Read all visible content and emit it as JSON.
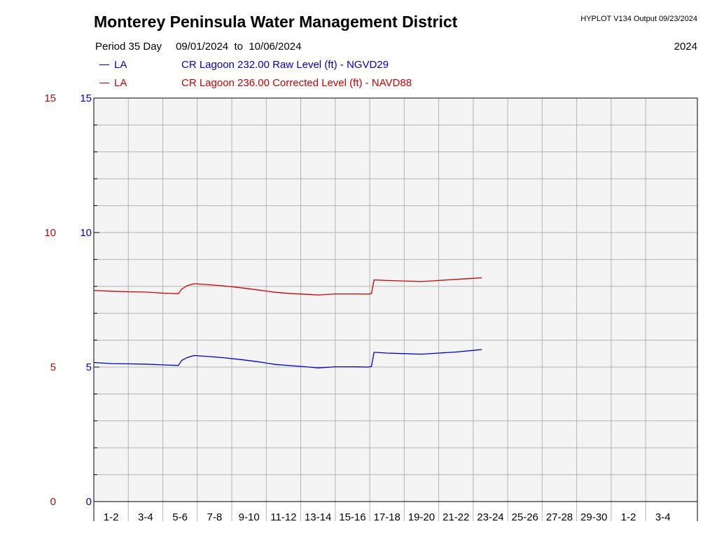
{
  "header": {
    "title": "Monterey Peninsula Water Management District",
    "software": "HYPLOT V134  Output 09/23/2024",
    "period_label": "Period",
    "period_length": "35 Day",
    "period_start": "09/01/2024",
    "period_to": "to",
    "period_end": "10/06/2024",
    "year": "2024"
  },
  "legend": [
    {
      "code": "LA",
      "description": "CR Lagoon  232.00 Raw Level (ft) - NGVD29",
      "color": "#0000cc"
    },
    {
      "code": "LA",
      "description": "CR Lagoon  236.00 Corrected Level (ft) - NAVD88",
      "color": "#cc0000"
    }
  ],
  "chart_data": {
    "type": "line",
    "title": "Monterey Peninsula Water Management District",
    "x_range_days": [
      0,
      35
    ],
    "ylim": [
      0,
      15
    ],
    "left_axis_ticks": [
      "0",
      "5",
      "10",
      "15"
    ],
    "right_axis_ticks": [
      "0",
      "5",
      "10",
      "15"
    ],
    "left_axis_color": "#cc0000",
    "right_axis_color": "#0000cc",
    "grid": true,
    "plot_background": "#f4f4f4",
    "x_tick_labels": [
      "1-2",
      "3-4",
      "5-6",
      "7-8",
      "9-10",
      "11-12",
      "13-14",
      "15-16",
      "17-18",
      "19-20",
      "21-22",
      "23-24",
      "25-26",
      "27-28",
      "29-30",
      "1-2",
      "3-4"
    ],
    "series": [
      {
        "name": "CR Lagoon  232.00 Raw Level (ft) - NGVD29",
        "color": "#0000cc",
        "points": [
          [
            0,
            5.17
          ],
          [
            1,
            5.13
          ],
          [
            2,
            5.12
          ],
          [
            3,
            5.11
          ],
          [
            4,
            5.08
          ],
          [
            4.9,
            5.06
          ],
          [
            5.1,
            5.25
          ],
          [
            5.4,
            5.35
          ],
          [
            5.8,
            5.43
          ],
          [
            6.5,
            5.4
          ],
          [
            7.5,
            5.35
          ],
          [
            8.5,
            5.28
          ],
          [
            9.5,
            5.2
          ],
          [
            10.5,
            5.1
          ],
          [
            11.5,
            5.05
          ],
          [
            12.5,
            5.0
          ],
          [
            13,
            4.97
          ],
          [
            14,
            5.01
          ],
          [
            15,
            5.01
          ],
          [
            15.9,
            5.0
          ],
          [
            16.1,
            5.02
          ],
          [
            16.25,
            5.55
          ],
          [
            17,
            5.52
          ],
          [
            18,
            5.5
          ],
          [
            19,
            5.48
          ],
          [
            20,
            5.52
          ],
          [
            21,
            5.56
          ],
          [
            22,
            5.62
          ],
          [
            22.5,
            5.65
          ]
        ]
      },
      {
        "name": "CR Lagoon  236.00 Corrected Level (ft) - NAVD88",
        "color": "#cc0000",
        "points": [
          [
            0,
            7.85
          ],
          [
            1,
            7.82
          ],
          [
            2,
            7.8
          ],
          [
            3,
            7.79
          ],
          [
            4,
            7.75
          ],
          [
            4.9,
            7.73
          ],
          [
            5.1,
            7.9
          ],
          [
            5.4,
            8.02
          ],
          [
            5.8,
            8.1
          ],
          [
            6.5,
            8.07
          ],
          [
            7.5,
            8.02
          ],
          [
            8.5,
            7.95
          ],
          [
            9.5,
            7.87
          ],
          [
            10.5,
            7.78
          ],
          [
            11.5,
            7.73
          ],
          [
            12.5,
            7.7
          ],
          [
            13,
            7.68
          ],
          [
            14,
            7.72
          ],
          [
            15,
            7.72
          ],
          [
            15.9,
            7.71
          ],
          [
            16.1,
            7.73
          ],
          [
            16.25,
            8.24
          ],
          [
            17,
            8.22
          ],
          [
            18,
            8.2
          ],
          [
            19,
            8.18
          ],
          [
            20,
            8.22
          ],
          [
            21,
            8.26
          ],
          [
            22,
            8.3
          ],
          [
            22.5,
            8.32
          ]
        ]
      }
    ]
  }
}
